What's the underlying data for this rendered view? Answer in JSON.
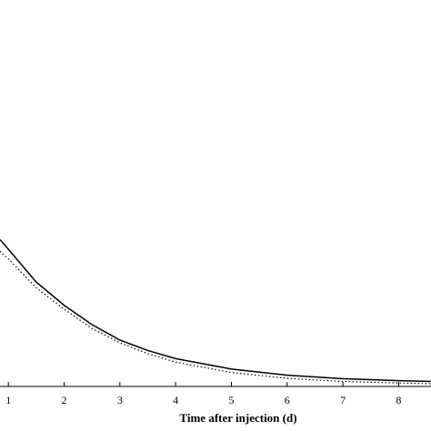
{
  "chart_data": {
    "type": "line",
    "x_label": "Time after injection (d)",
    "x": [
      0.85,
      1,
      1.5,
      2,
      2.5,
      3,
      3.5,
      4,
      5,
      6,
      7,
      8,
      8.58
    ],
    "series": [
      {
        "color": "#000000",
        "dash": "solid",
        "values": [
          0.38,
          0.355,
          0.27,
          0.21,
          0.16,
          0.12,
          0.093,
          0.072,
          0.045,
          0.029,
          0.02,
          0.015,
          0.013
        ]
      },
      {
        "color": "#000000",
        "dash": "dotted",
        "values": [
          0.35,
          0.33,
          0.255,
          0.2,
          0.15,
          0.113,
          0.085,
          0.063,
          0.036,
          0.021,
          0.013,
          0.009,
          0.007
        ]
      }
    ],
    "xlim": [
      0.85,
      8.58
    ],
    "ylim": [
      0,
      1
    ],
    "xticks": [
      1,
      2,
      3,
      4,
      5,
      6,
      7,
      8
    ]
  }
}
